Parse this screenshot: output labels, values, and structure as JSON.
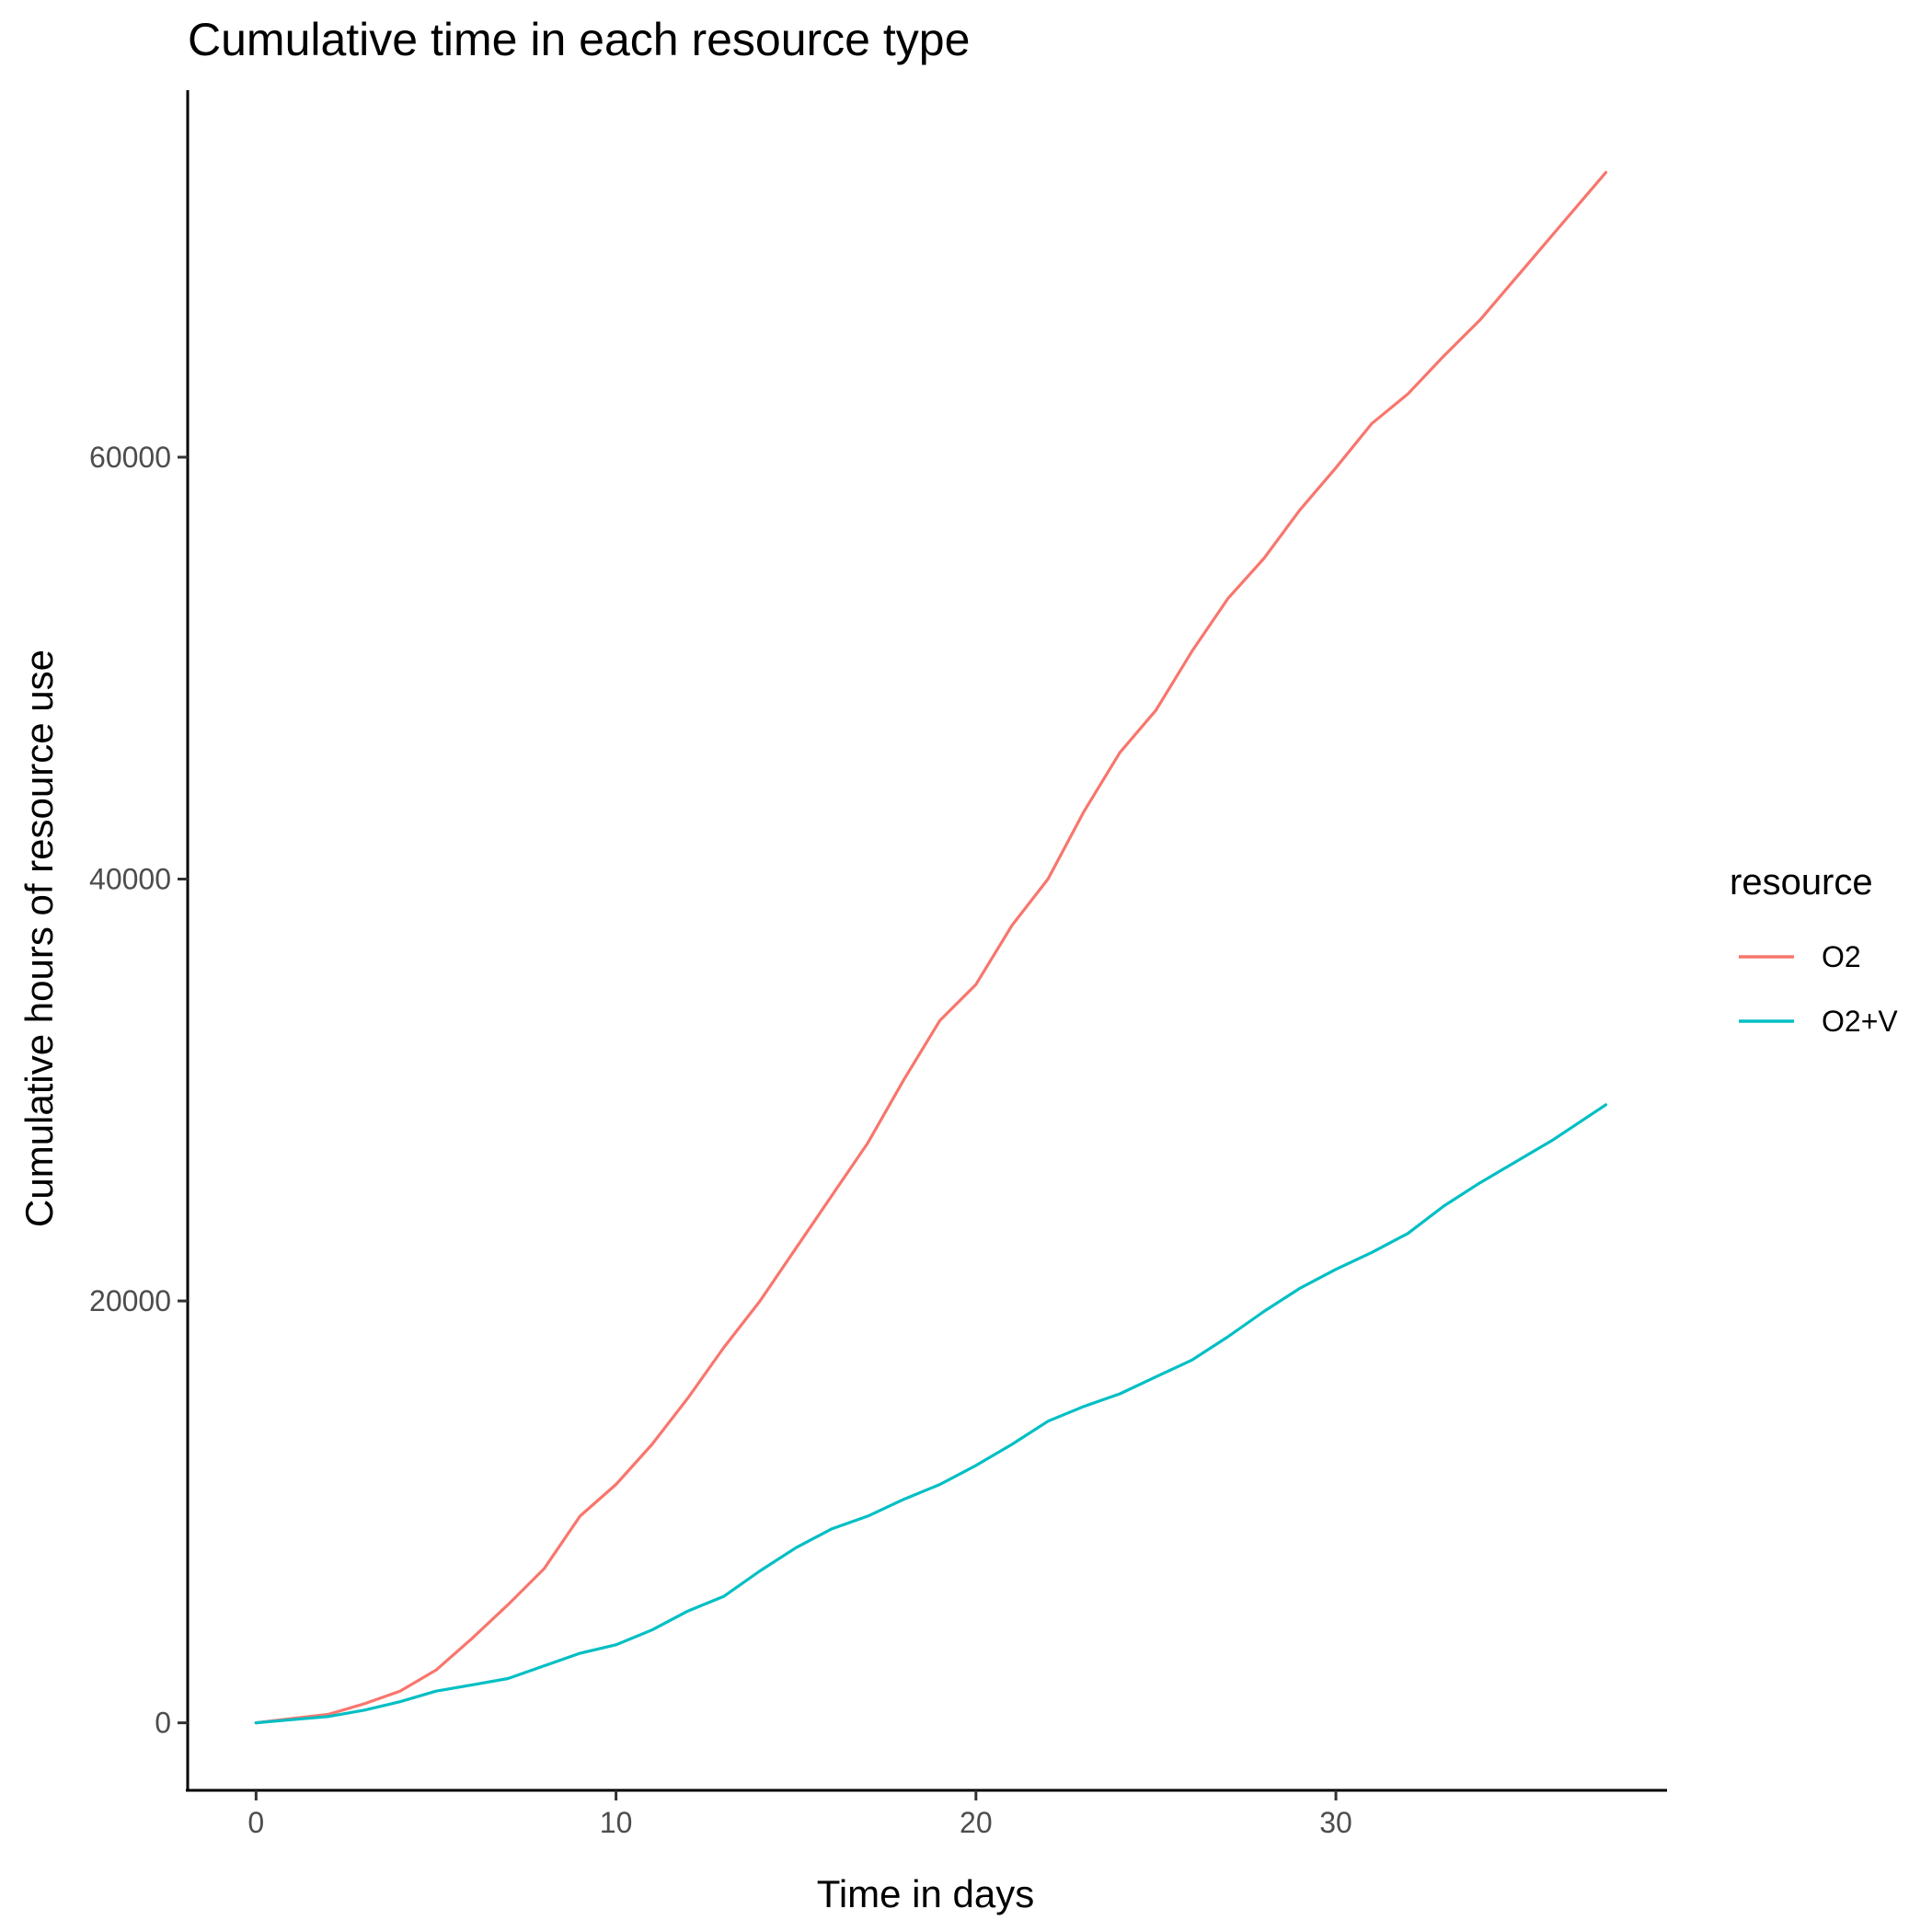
{
  "chart_data": {
    "type": "line",
    "title": "Cumulative time in each resource type",
    "xlabel": "Time in days",
    "ylabel": "Cumulative hours of resource use",
    "xlim": [
      -1.9,
      39.2
    ],
    "ylim": [
      -3200,
      77400
    ],
    "x_ticks": [
      0,
      10,
      20,
      30
    ],
    "y_ticks": [
      0,
      20000,
      40000,
      60000
    ],
    "grid": false,
    "legend": {
      "title": "resource",
      "placement": "right"
    },
    "series": [
      {
        "name": "O2",
        "color": "#F8766D",
        "x": [
          0,
          1,
          2,
          3,
          4,
          5,
          6,
          7,
          8,
          9,
          10,
          11,
          12,
          13,
          14,
          15,
          16,
          17,
          18,
          19,
          20,
          21,
          22,
          23,
          24,
          25,
          26,
          27,
          28,
          29,
          30,
          31,
          32,
          33,
          34,
          35,
          36,
          37.5
        ],
        "y": [
          0,
          200,
          400,
          900,
          1500,
          2500,
          4000,
          5600,
          7300,
          9800,
          11300,
          13200,
          15400,
          17800,
          20000,
          22500,
          25000,
          27500,
          30500,
          33300,
          35000,
          37800,
          40000,
          43200,
          46000,
          48000,
          50800,
          53300,
          55200,
          57500,
          59500,
          61600,
          63000,
          64800,
          66500,
          68500,
          70500,
          73500
        ]
      },
      {
        "name": "O2+V",
        "color": "#00BFC4",
        "x": [
          0,
          1,
          2,
          3,
          4,
          5,
          6,
          7,
          8,
          9,
          10,
          11,
          12,
          13,
          14,
          15,
          16,
          17,
          18,
          19,
          20,
          21,
          22,
          23,
          24,
          25,
          26,
          27,
          28,
          29,
          30,
          31,
          32,
          33,
          34,
          35,
          36,
          37.5
        ],
        "y": [
          0,
          150,
          300,
          600,
          1000,
          1500,
          1800,
          2100,
          2700,
          3300,
          3700,
          4400,
          5300,
          6000,
          7200,
          8300,
          9200,
          9800,
          10600,
          11300,
          12200,
          13200,
          14300,
          15000,
          15600,
          16400,
          17200,
          18300,
          19500,
          20600,
          21500,
          22300,
          23200,
          24500,
          25600,
          26600,
          27600,
          29300
        ]
      }
    ]
  }
}
